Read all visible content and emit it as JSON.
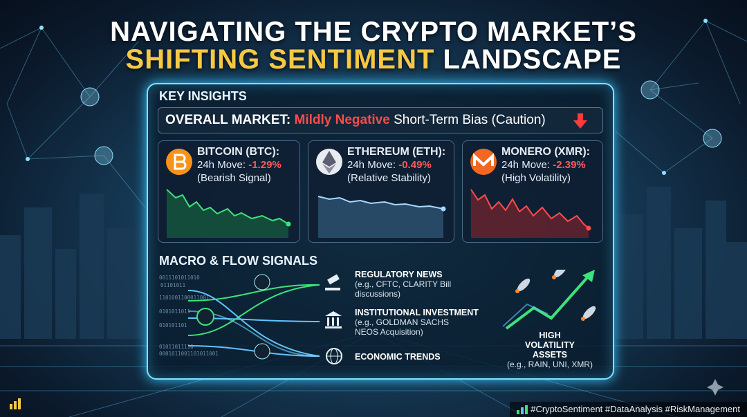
{
  "header": {
    "line1": "NAVIGATING THE CRYPTO MARKET’S",
    "line2_highlight": "SHIFTING SENTIMENT",
    "line2_rest": "LANDSCAPE"
  },
  "key_insights": {
    "title": "KEY INSIGHTS",
    "overall": {
      "label": "OVERALL MARKET:",
      "sentiment": "Mildly Negative",
      "rest": "Short-Term Bias (Caution)"
    },
    "cards": [
      {
        "name": "BITCOIN (BTC):",
        "move_label": "24h Move:",
        "move": "-1.29%",
        "note": "(Bearish Signal)"
      },
      {
        "name": "ETHEREUM (ETH):",
        "move_label": "24h Move:",
        "move": "-0.49%",
        "note": "(Relative Stability)"
      },
      {
        "name": "MONERO (XMR):",
        "move_label": "24h Move:",
        "move": "-2.39%",
        "note": "(High Volatility)"
      }
    ]
  },
  "macro": {
    "title": "MACRO & FLOW SIGNALS",
    "signals": [
      {
        "title": "REGULATORY NEWS",
        "detail": "(e.g., CFTC, CLARITY Bill discussions)"
      },
      {
        "title": "INSTITUTIONAL INVESTMENT",
        "detail": "(e.g., GOLDMAN SACHS NEOS Acquisition)"
      },
      {
        "title": "ECONOMIC TRENDS"
      }
    ],
    "binary": [
      "0011101011010",
      "01101011",
      "1101001100011001",
      "0101011011",
      "010101101",
      "01011011110",
      "0001011001101011001"
    ],
    "high_volatility": {
      "title": "HIGH VOLATILITY ASSETS",
      "examples": "(e.g., RAIN, UNI, XMR)"
    }
  },
  "footer": {
    "hashtags": "#CryptoSentiment #DataAnalysis #RiskManagement"
  }
}
